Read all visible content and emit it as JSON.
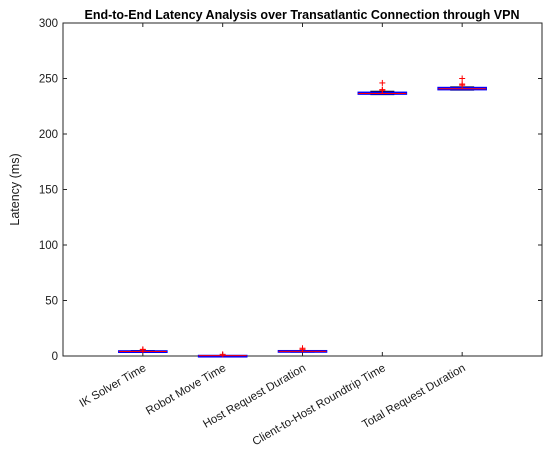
{
  "chart_data": {
    "type": "box",
    "title": "End-to-End Latency Analysis over Transatlantic Connection through VPN",
    "xlabel": "",
    "ylabel": "Latency (ms)",
    "ylim": [
      0,
      300
    ],
    "yticks": [
      0,
      50,
      100,
      150,
      200,
      250,
      300
    ],
    "grid": false,
    "categories": [
      "IK Solver Time",
      "Robot Move Time",
      "Host Request Duration",
      "Client-to-Host Roundtrip Time",
      "Total Request Duration"
    ],
    "boxes": [
      {
        "name": "IK Solver Time",
        "q1": 3.5,
        "median": 4.0,
        "q3": 4.5,
        "whisker_low": 3.2,
        "whisker_high": 4.8,
        "outliers": [
          5.5,
          6.0
        ]
      },
      {
        "name": "Robot Move Time",
        "q1": 0.2,
        "median": 0.3,
        "q3": 0.4,
        "whisker_low": 0.1,
        "whisker_high": 0.5,
        "outliers": [
          1.5
        ]
      },
      {
        "name": "Host Request Duration",
        "q1": 3.8,
        "median": 4.2,
        "q3": 4.7,
        "whisker_low": 3.5,
        "whisker_high": 5.0,
        "outliers": [
          6.0,
          7.0
        ]
      },
      {
        "name": "Client-to-Host Roundtrip Time",
        "q1": 236.0,
        "median": 236.5,
        "q3": 237.5,
        "whisker_low": 235.5,
        "whisker_high": 238.5,
        "outliers": [
          239.5,
          240.0,
          246.0
        ]
      },
      {
        "name": "Total Request Duration",
        "q1": 240.0,
        "median": 240.8,
        "q3": 241.8,
        "whisker_low": 239.5,
        "whisker_high": 242.5,
        "outliers": [
          244.0,
          245.0,
          250.0
        ]
      }
    ],
    "colors": {
      "box": "#0000ff",
      "median": "#ff0000",
      "whisker": "#000000",
      "outlier": "#ff0000",
      "axis": "#262626"
    }
  }
}
